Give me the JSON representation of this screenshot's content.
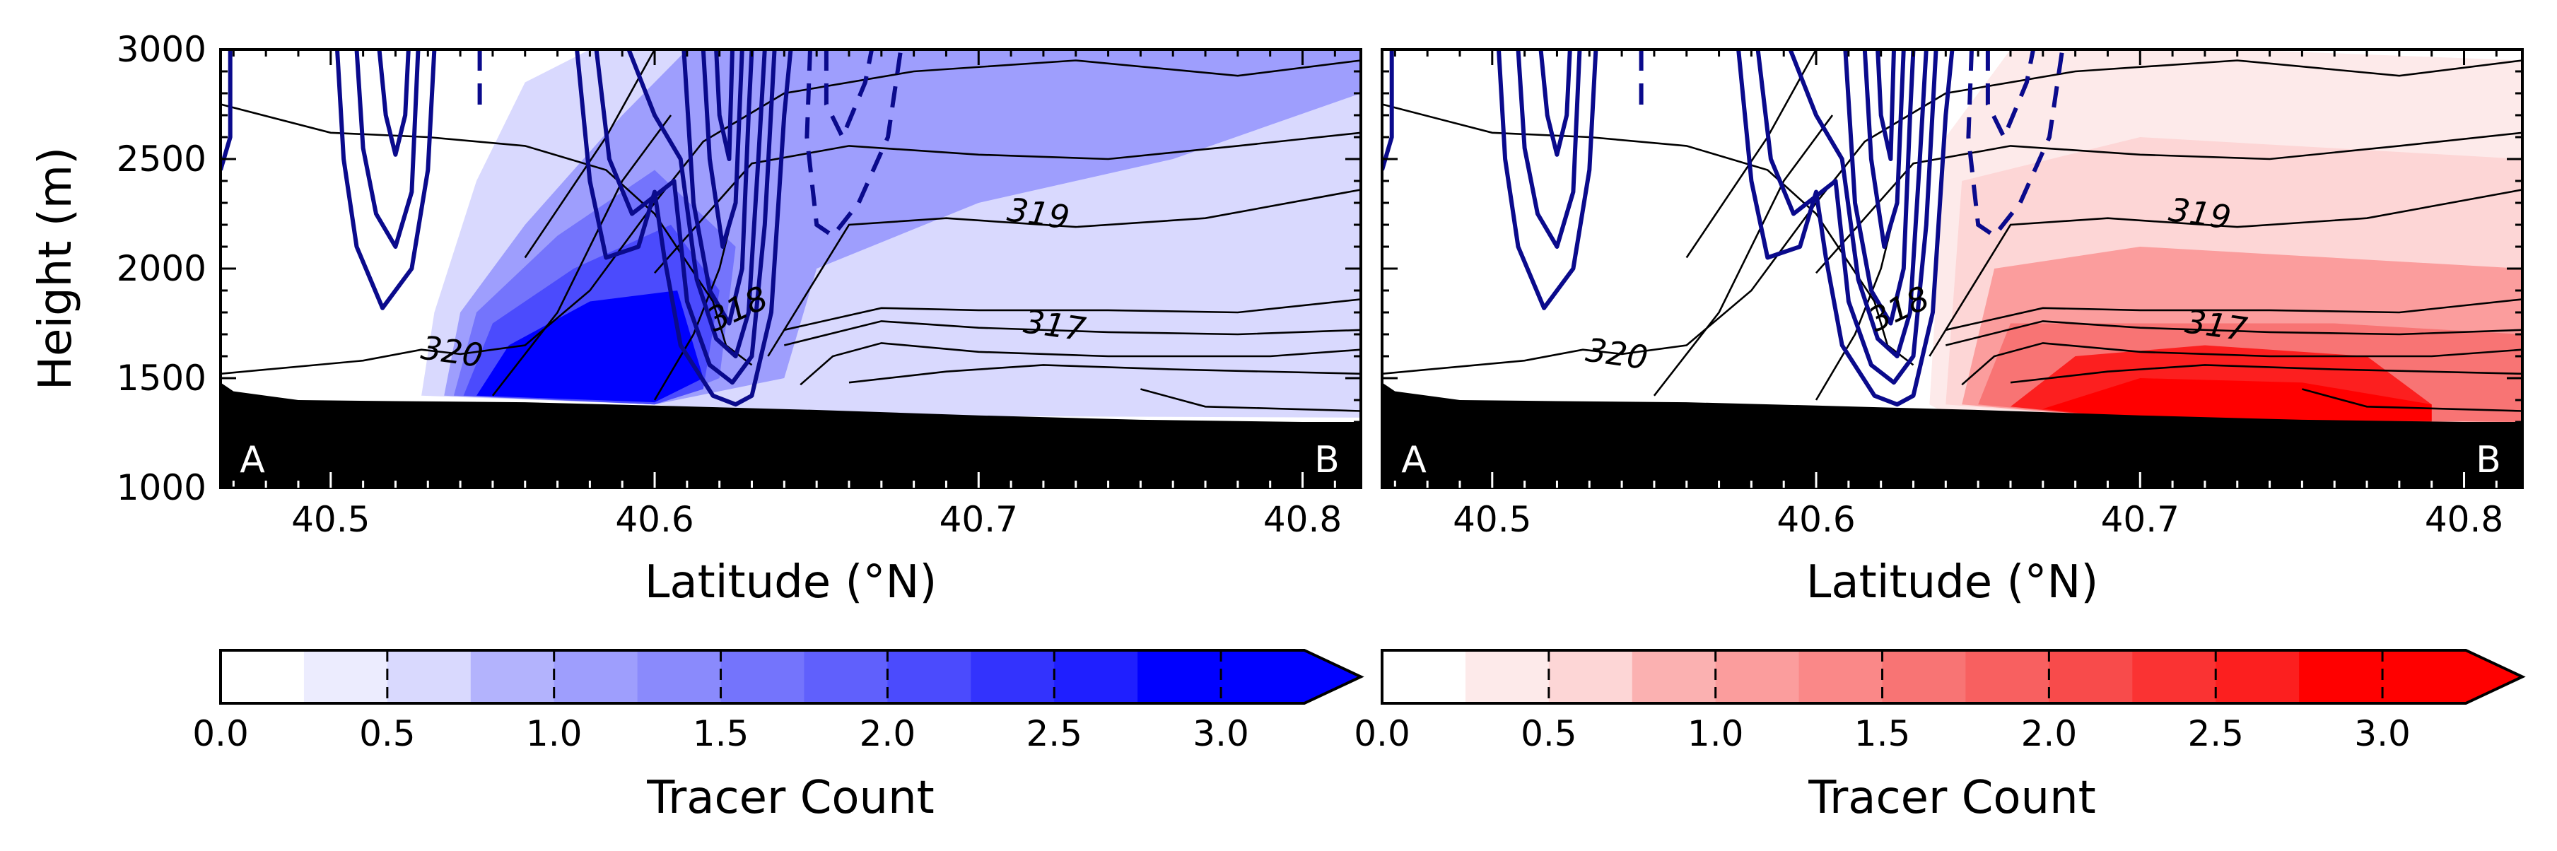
{
  "chart_data": [
    {
      "type": "contour",
      "panel": "left",
      "xlabel": "Latitude (°N)",
      "ylabel": "Height (m)",
      "xlim": [
        40.466,
        40.818
      ],
      "ylim": [
        1000,
        3000
      ],
      "xticks": [
        40.5,
        40.6,
        40.7,
        40.8
      ],
      "xtick_labels": [
        "40.5",
        "40.6",
        "40.7",
        "40.8"
      ],
      "yticks": [
        1000,
        1500,
        2000,
        2500,
        3000
      ],
      "ytick_labels": [
        "1000",
        "1500",
        "2000",
        "2500",
        "3000"
      ],
      "section_start": "A",
      "section_end": "B",
      "fill_colormap": "Blues",
      "fill_color": "#0000ff",
      "contour_labels": [
        {
          "text": "320",
          "x": 40.537,
          "y": 1570
        },
        {
          "text": "319",
          "x": 40.718,
          "y": 2200
        },
        {
          "text": "318",
          "x": 40.627,
          "y": 1770
        },
        {
          "text": "317",
          "x": 40.723,
          "y": 1690
        }
      ],
      "tracer_regions": [
        {
          "level": 0.5,
          "points": [
            [
              40.528,
              1420
            ],
            [
              40.532,
              1800
            ],
            [
              40.545,
              2400
            ],
            [
              40.56,
              2850
            ],
            [
              40.58,
              3000
            ],
            [
              40.818,
              3000
            ],
            [
              40.818,
              1320
            ],
            [
              40.64,
              1330
            ],
            [
              40.6,
              1380
            ]
          ]
        },
        {
          "level": 1.0,
          "points": [
            [
              40.535,
              1420
            ],
            [
              40.54,
              1800
            ],
            [
              40.56,
              2200
            ],
            [
              40.59,
              2700
            ],
            [
              40.61,
              3000
            ],
            [
              40.818,
              3000
            ],
            [
              40.818,
              2800
            ],
            [
              40.76,
              2500
            ],
            [
              40.7,
              2300
            ],
            [
              40.65,
              2000
            ],
            [
              40.64,
              1500
            ],
            [
              40.6,
              1380
            ]
          ]
        },
        {
          "level": 1.5,
          "points": [
            [
              40.538,
              1420
            ],
            [
              40.545,
              1800
            ],
            [
              40.57,
              2150
            ],
            [
              40.6,
              2450
            ],
            [
              40.625,
              2100
            ],
            [
              40.62,
              1500
            ],
            [
              40.6,
              1380
            ]
          ]
        },
        {
          "level": 2.0,
          "points": [
            [
              40.541,
              1420
            ],
            [
              40.55,
              1750
            ],
            [
              40.575,
              2000
            ],
            [
              40.605,
              2200
            ],
            [
              40.62,
              1900
            ],
            [
              40.615,
              1450
            ],
            [
              40.6,
              1380
            ]
          ]
        },
        {
          "level": 3.0,
          "points": [
            [
              40.545,
              1420
            ],
            [
              40.555,
              1650
            ],
            [
              40.58,
              1850
            ],
            [
              40.607,
              1900
            ],
            [
              40.615,
              1500
            ],
            [
              40.6,
              1390
            ]
          ]
        }
      ]
    },
    {
      "type": "contour",
      "panel": "right",
      "xlabel": "Latitude (°N)",
      "ylabel": "",
      "xlim": [
        40.466,
        40.818
      ],
      "ylim": [
        1000,
        3000
      ],
      "xticks": [
        40.5,
        40.6,
        40.7,
        40.8
      ],
      "xtick_labels": [
        "40.5",
        "40.6",
        "40.7",
        "40.8"
      ],
      "section_start": "A",
      "section_end": "B",
      "fill_colormap": "Reds",
      "fill_color": "#ff0000",
      "contour_labels": [
        {
          "text": "320",
          "x": 40.538,
          "y": 1560
        },
        {
          "text": "319",
          "x": 40.718,
          "y": 2200
        },
        {
          "text": "318",
          "x": 40.627,
          "y": 1770
        },
        {
          "text": "317",
          "x": 40.723,
          "y": 1690
        }
      ],
      "tracer_regions": [
        {
          "level": 0.25,
          "points": [
            [
              40.635,
              1380
            ],
            [
              40.64,
              2600
            ],
            [
              40.66,
              3000
            ],
            [
              40.73,
              3000
            ],
            [
              40.818,
              2950
            ],
            [
              40.818,
              1300
            ],
            [
              40.7,
              1310
            ],
            [
              40.64,
              1340
            ]
          ]
        },
        {
          "level": 0.5,
          "points": [
            [
              40.64,
              1380
            ],
            [
              40.645,
              2400
            ],
            [
              40.7,
              2600
            ],
            [
              40.818,
              2500
            ],
            [
              40.818,
              1300
            ],
            [
              40.7,
              1310
            ]
          ]
        },
        {
          "level": 1.0,
          "points": [
            [
              40.645,
              1380
            ],
            [
              40.655,
              2000
            ],
            [
              40.7,
              2100
            ],
            [
              40.818,
              2000
            ],
            [
              40.818,
              1300
            ],
            [
              40.7,
              1310
            ]
          ]
        },
        {
          "level": 1.5,
          "points": [
            [
              40.65,
              1380
            ],
            [
              40.66,
              1750
            ],
            [
              40.7,
              1750
            ],
            [
              40.76,
              1750
            ],
            [
              40.818,
              1700
            ],
            [
              40.818,
              1300
            ],
            [
              40.7,
              1310
            ]
          ]
        },
        {
          "level": 2.5,
          "points": [
            [
              40.66,
              1370
            ],
            [
              40.68,
              1600
            ],
            [
              40.72,
              1650
            ],
            [
              40.77,
              1600
            ],
            [
              40.79,
              1380
            ],
            [
              40.79,
              1300
            ],
            [
              40.7,
              1310
            ]
          ]
        },
        {
          "level": 3.0,
          "points": [
            [
              40.67,
              1360
            ],
            [
              40.7,
              1500
            ],
            [
              40.75,
              1480
            ],
            [
              40.79,
              1380
            ],
            [
              40.79,
              1305
            ],
            [
              40.7,
              1310
            ]
          ]
        }
      ]
    }
  ],
  "colorbars": [
    {
      "label": "Tracer Count",
      "ticks": [
        0.0,
        0.5,
        1.0,
        1.5,
        2.0,
        2.5,
        3.0
      ],
      "tick_labels": [
        "0.0",
        "0.5",
        "1.0",
        "1.5",
        "2.0",
        "2.5",
        "3.0"
      ],
      "bounds": [
        0.0,
        0.25,
        0.5,
        0.75,
        1.0,
        1.25,
        1.5,
        1.75,
        2.0,
        2.25,
        2.5,
        2.75,
        3.0,
        3.25
      ],
      "extend": "max",
      "colors": [
        "#ffffff",
        "#ececfe",
        "#d9d9fe",
        "#b3b3fd",
        "#9e9efd",
        "#8a8afc",
        "#7474fc",
        "#6060fc",
        "#4b4bfd",
        "#3333fd",
        "#1f1fff",
        "#0000ff"
      ]
    },
    {
      "label": "Tracer Count",
      "ticks": [
        0.0,
        0.5,
        1.0,
        1.5,
        2.0,
        2.5,
        3.0
      ],
      "tick_labels": [
        "0.0",
        "0.5",
        "1.0",
        "1.5",
        "2.0",
        "2.5",
        "3.0"
      ],
      "bounds": [
        0.0,
        0.25,
        0.5,
        0.75,
        1.0,
        1.25,
        1.5,
        1.75,
        2.0,
        2.25,
        2.5,
        2.75,
        3.0,
        3.25
      ],
      "extend": "max",
      "colors": [
        "#ffffff",
        "#fdeaea",
        "#fdd6d6",
        "#fbb1b1",
        "#fb9d9d",
        "#fa8888",
        "#f87474",
        "#f86060",
        "#f84b4b",
        "#fa3333",
        "#fc1f1f",
        "#ff0000"
      ]
    }
  ],
  "colors": {
    "terrain": "#000000",
    "theta_contours": "#000000",
    "wind_contours": "#0a0a8c"
  }
}
